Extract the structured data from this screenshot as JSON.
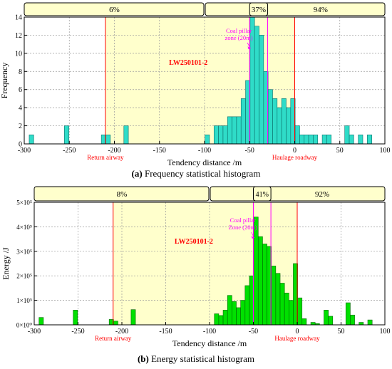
{
  "colors": {
    "zone_fill": "#ffffcc",
    "red_line": "#ff0000",
    "magenta": "#ff00ff",
    "bar_a": "#2fdcc8",
    "bar_a_edge": "#0b6f6a",
    "bar_b": "#00e000",
    "bar_b_edge": "#006600",
    "grid": "#9a9a9a",
    "label_red": "#ff0000"
  },
  "chart_data": [
    {
      "type": "bar",
      "caption_letter": "(a)",
      "caption_text": " Frequency statistical histogram",
      "xlabel": "Tendency distance /m",
      "ylabel": "Frequency",
      "xlim": [
        -300,
        100
      ],
      "ylim": [
        0,
        14
      ],
      "x_ticks": [
        "-300",
        "-250",
        "-200",
        "-150",
        "-100",
        "-50",
        "0",
        "50",
        "100"
      ],
      "y_ticks": [
        "0",
        "2",
        "4",
        "6",
        "8",
        "10",
        "12",
        "14"
      ],
      "grid": true,
      "bar_width": 5,
      "x": [
        -292,
        -253,
        -212,
        -207,
        -187,
        -97,
        -87,
        -82,
        -77,
        -72,
        -67,
        -62,
        -57,
        -52,
        -47,
        -42,
        -37,
        -32,
        -27,
        -22,
        -17,
        -12,
        -7,
        -2,
        3,
        8,
        13,
        18,
        23,
        33,
        38,
        58,
        63,
        73,
        83
      ],
      "values": [
        1,
        2,
        1,
        1,
        2,
        1,
        2,
        2,
        2,
        3,
        3,
        3,
        5,
        7,
        14,
        13,
        12,
        8,
        6,
        5,
        4,
        5,
        4,
        5,
        2,
        1,
        1,
        1,
        1,
        1,
        1,
        2,
        1,
        1,
        1
      ],
      "zones": [
        {
          "label": "6%",
          "from": -210,
          "to": -100
        },
        {
          "label": "37%",
          "from": -50,
          "to": -30
        },
        {
          "label": "94%",
          "from": -100,
          "to": 0
        }
      ],
      "lines": [
        {
          "x": -210,
          "kind": "red",
          "label": "Return airway"
        },
        {
          "x": -50,
          "kind": "magenta",
          "label": ""
        },
        {
          "x": -30,
          "kind": "magenta",
          "label": ""
        },
        {
          "x": 0,
          "kind": "red",
          "label": "Haulage roadway"
        }
      ],
      "annotation_pillar": [
        "Coal pillar",
        "zone (20m)"
      ],
      "annotation_face": "LW250101-2"
    },
    {
      "type": "bar",
      "caption_letter": "(b)",
      "caption_text": " Energy statistical histogram",
      "xlabel": "Tendency distance /m",
      "ylabel": "Energy /J",
      "xlim": [
        -300,
        100
      ],
      "ylim": [
        0,
        500000
      ],
      "x_ticks": [
        "-300",
        "-250",
        "-200",
        "-150",
        "-100",
        "-50",
        "0",
        "50",
        "100"
      ],
      "y_ticks": [
        "0×10⁰",
        "1×10⁵",
        "2×10⁵",
        "3×10⁵",
        "4×10⁵",
        "5×10⁵"
      ],
      "grid": true,
      "bar_width": 5,
      "x": [
        -292,
        -253,
        -212,
        -207,
        -187,
        -92,
        -87,
        -82,
        -77,
        -72,
        -67,
        -62,
        -57,
        -52,
        -47,
        -42,
        -37,
        -32,
        -27,
        -22,
        -17,
        -12,
        -7,
        -2,
        3,
        8,
        18,
        23,
        33,
        38,
        58,
        63,
        73,
        83
      ],
      "values": [
        30000,
        60000,
        22000,
        15000,
        62000,
        45000,
        38000,
        60000,
        120000,
        95000,
        70000,
        100000,
        160000,
        200000,
        440000,
        360000,
        330000,
        320000,
        240000,
        210000,
        170000,
        130000,
        100000,
        250000,
        110000,
        25000,
        10000,
        5000,
        60000,
        35000,
        90000,
        40000,
        10000,
        20000
      ],
      "zones": [
        {
          "label": "8%",
          "from": -210,
          "to": -100
        },
        {
          "label": "41%",
          "from": -50,
          "to": -30
        },
        {
          "label": "92%",
          "from": -100,
          "to": 0
        }
      ],
      "lines": [
        {
          "x": -210,
          "kind": "red",
          "label": "Return airway"
        },
        {
          "x": -50,
          "kind": "magenta",
          "label": ""
        },
        {
          "x": -30,
          "kind": "magenta",
          "label": ""
        },
        {
          "x": 0,
          "kind": "red",
          "label": "Haulage roadway"
        }
      ],
      "annotation_pillar": [
        "Coal pillar",
        "Zone (20m)"
      ],
      "annotation_face": "LW250101-2"
    }
  ]
}
